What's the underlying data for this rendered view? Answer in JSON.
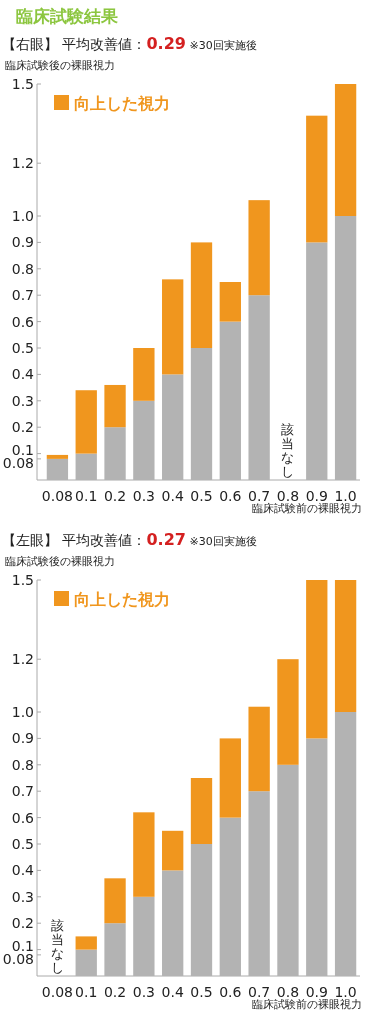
{
  "chart_data": [
    {
      "type": "bar",
      "title": "臨床試験結果",
      "subtitle": "【右眼】 平均改善値：0.29 ※30回実施後",
      "ylabel": "臨床試験後の裸眼視力",
      "xlabel": "臨床試験前の裸眼視力",
      "categories": [
        "0.08",
        "0.1",
        "0.2",
        "0.3",
        "0.4",
        "0.5",
        "0.6",
        "0.7",
        "0.8",
        "0.9",
        "1.0"
      ],
      "series": [
        {
          "color": "#b3b3b3",
          "values": [
            0.08,
            0.1,
            0.2,
            0.3,
            0.4,
            0.5,
            0.6,
            0.7,
            null,
            0.9,
            1.0
          ]
        },
        {
          "name": "向上した視力",
          "color": "#f0961e",
          "values": [
            0.015,
            0.24,
            0.16,
            0.2,
            0.36,
            0.4,
            0.15,
            0.36,
            null,
            0.48,
            0.5
          ]
        }
      ],
      "stacked": true,
      "ylim": [
        0,
        1.5
      ],
      "yticks": [
        0.08,
        0.1,
        0.2,
        0.3,
        0.4,
        0.5,
        0.6,
        0.7,
        0.8,
        0.9,
        {
          "value": 1,
          "label": "1.0"
        },
        1.2,
        1.5
      ],
      "legend": "top left",
      "annotations": [
        "該当なし"
      ]
    },
    {
      "type": "bar",
      "subtitle": "【左眼】 平均改善値：0.27 ※30回実施後",
      "ylabel": "臨床試験後の裸眼視力",
      "xlabel": "臨床試験前の裸眼視力",
      "categories": [
        "0.08",
        "0.1",
        "0.2",
        "0.3",
        "0.4",
        "0.5",
        "0.6",
        "0.7",
        "0.8",
        "0.9",
        "1.0"
      ],
      "series": [
        {
          "color": "#b3b3b3",
          "values": [
            null,
            0.1,
            0.2,
            0.3,
            0.4,
            0.5,
            0.6,
            0.7,
            0.8,
            0.9,
            1.0
          ]
        },
        {
          "name": "向上した視力",
          "color": "#f0961e",
          "values": [
            null,
            0.05,
            0.17,
            0.32,
            0.15,
            0.25,
            0.3,
            0.32,
            0.4,
            0.6,
            0.5
          ]
        }
      ],
      "stacked": true,
      "ylim": [
        0,
        1.5
      ],
      "yticks": [
        0.08,
        0.1,
        0.2,
        0.3,
        0.4,
        0.5,
        0.6,
        0.7,
        0.8,
        0.9,
        {
          "value": 1,
          "label": "1.0"
        },
        1.2,
        1.5
      ],
      "legend": "top left",
      "annotations": [
        "該当なし"
      ]
    }
  ]
}
